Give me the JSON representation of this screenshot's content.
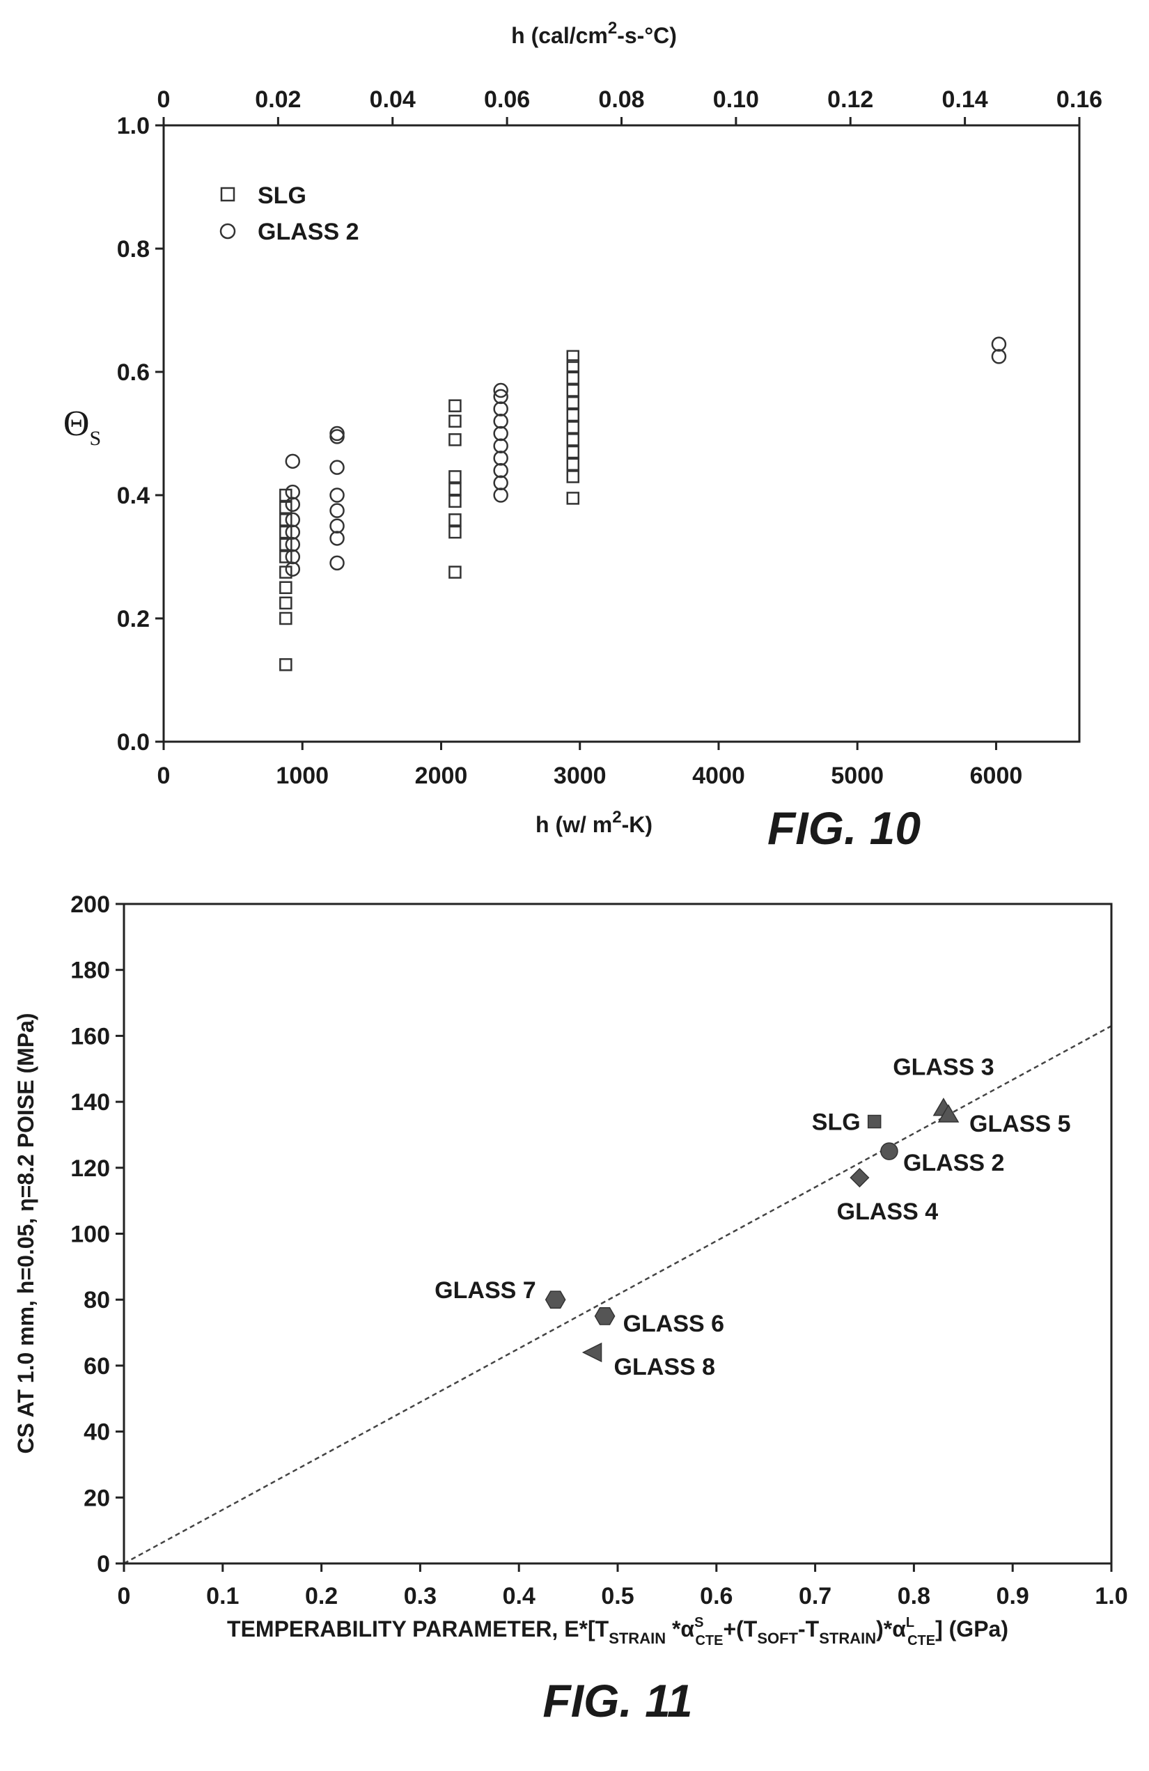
{
  "chart_data": [
    {
      "type": "scatter",
      "figure_label": "FIG. 10",
      "xlabel": "h (w/ m2-K)",
      "x2label": "h (cal/cm2-s-°C)",
      "ylabel": "ΘS",
      "xlim": [
        0,
        6600
      ],
      "ylim": [
        0.0,
        1.0
      ],
      "x2lim": [
        0,
        0.16
      ],
      "x_ticks": [
        "0",
        "1000",
        "2000",
        "3000",
        "4000",
        "5000",
        "6000"
      ],
      "x2_ticks": [
        "0",
        "0.02",
        "0.04",
        "0.06",
        "0.08",
        "0.10",
        "0.12",
        "0.14",
        "0.16"
      ],
      "y_ticks": [
        "0.0",
        "0.2",
        "0.4",
        "0.6",
        "0.8",
        "1.0"
      ],
      "legend_position": "top-left",
      "series": [
        {
          "name": "SLG",
          "marker": "square",
          "points": [
            [
              880,
              0.125
            ],
            [
              880,
              0.2
            ],
            [
              880,
              0.225
            ],
            [
              880,
              0.25
            ],
            [
              880,
              0.275
            ],
            [
              880,
              0.3
            ],
            [
              880,
              0.32
            ],
            [
              880,
              0.34
            ],
            [
              880,
              0.36
            ],
            [
              880,
              0.38
            ],
            [
              880,
              0.4
            ],
            [
              2100,
              0.275
            ],
            [
              2100,
              0.34
            ],
            [
              2100,
              0.36
            ],
            [
              2100,
              0.39
            ],
            [
              2100,
              0.41
            ],
            [
              2100,
              0.43
            ],
            [
              2100,
              0.49
            ],
            [
              2100,
              0.52
            ],
            [
              2100,
              0.545
            ],
            [
              2950,
              0.395
            ],
            [
              2950,
              0.43
            ],
            [
              2950,
              0.45
            ],
            [
              2950,
              0.47
            ],
            [
              2950,
              0.49
            ],
            [
              2950,
              0.51
            ],
            [
              2950,
              0.53
            ],
            [
              2950,
              0.55
            ],
            [
              2950,
              0.57
            ],
            [
              2950,
              0.59
            ],
            [
              2950,
              0.61
            ],
            [
              2950,
              0.625
            ]
          ]
        },
        {
          "name": "GLASS 2",
          "marker": "circle",
          "points": [
            [
              930,
              0.28
            ],
            [
              930,
              0.3
            ],
            [
              930,
              0.32
            ],
            [
              930,
              0.34
            ],
            [
              930,
              0.36
            ],
            [
              930,
              0.385
            ],
            [
              930,
              0.405
            ],
            [
              930,
              0.455
            ],
            [
              1250,
              0.29
            ],
            [
              1250,
              0.33
            ],
            [
              1250,
              0.35
            ],
            [
              1250,
              0.375
            ],
            [
              1250,
              0.4
            ],
            [
              1250,
              0.445
            ],
            [
              1250,
              0.495
            ],
            [
              1250,
              0.5
            ],
            [
              2430,
              0.4
            ],
            [
              2430,
              0.42
            ],
            [
              2430,
              0.44
            ],
            [
              2430,
              0.46
            ],
            [
              2430,
              0.48
            ],
            [
              2430,
              0.5
            ],
            [
              2430,
              0.52
            ],
            [
              2430,
              0.54
            ],
            [
              2430,
              0.56
            ],
            [
              2430,
              0.57
            ],
            [
              6020,
              0.625
            ],
            [
              6020,
              0.645
            ]
          ]
        }
      ]
    },
    {
      "type": "scatter",
      "figure_label": "FIG. 11",
      "xlabel": "TEMPERABILITY PARAMETER, E*[TSTRAIN *αSCTE+(TSOFT-TSTRAIN)*αLCTE] (GPa)",
      "ylabel": "CS AT 1.0 mm, h=0.05, η=8.2 POISE (MPa)",
      "xlim": [
        0,
        1.0
      ],
      "ylim": [
        0,
        200
      ],
      "x_ticks": [
        "0",
        "0.1",
        "0.2",
        "0.3",
        "0.4",
        "0.5",
        "0.6",
        "0.7",
        "0.8",
        "0.9",
        "1.0"
      ],
      "y_ticks": [
        "0",
        "20",
        "40",
        "60",
        "80",
        "100",
        "120",
        "140",
        "160",
        "180",
        "200"
      ],
      "trendline": {
        "style": "dashed",
        "x": [
          0,
          1.0
        ],
        "y": [
          0,
          163
        ]
      },
      "points": [
        {
          "label": "SLG",
          "x": 0.76,
          "y": 134,
          "marker": "square"
        },
        {
          "label": "GLASS 2",
          "x": 0.775,
          "y": 125,
          "marker": "circle"
        },
        {
          "label": "GLASS 3",
          "x": 0.83,
          "y": 138,
          "marker": "triangle"
        },
        {
          "label": "GLASS 5",
          "x": 0.835,
          "y": 136,
          "marker": "triangle"
        },
        {
          "label": "GLASS 4",
          "x": 0.745,
          "y": 117,
          "marker": "diamond"
        },
        {
          "label": "GLASS 7",
          "x": 0.437,
          "y": 80,
          "marker": "hexagon"
        },
        {
          "label": "GLASS 6",
          "x": 0.487,
          "y": 75,
          "marker": "hexagon"
        },
        {
          "label": "GLASS 8",
          "x": 0.475,
          "y": 64,
          "marker": "triangle-left"
        }
      ]
    }
  ]
}
